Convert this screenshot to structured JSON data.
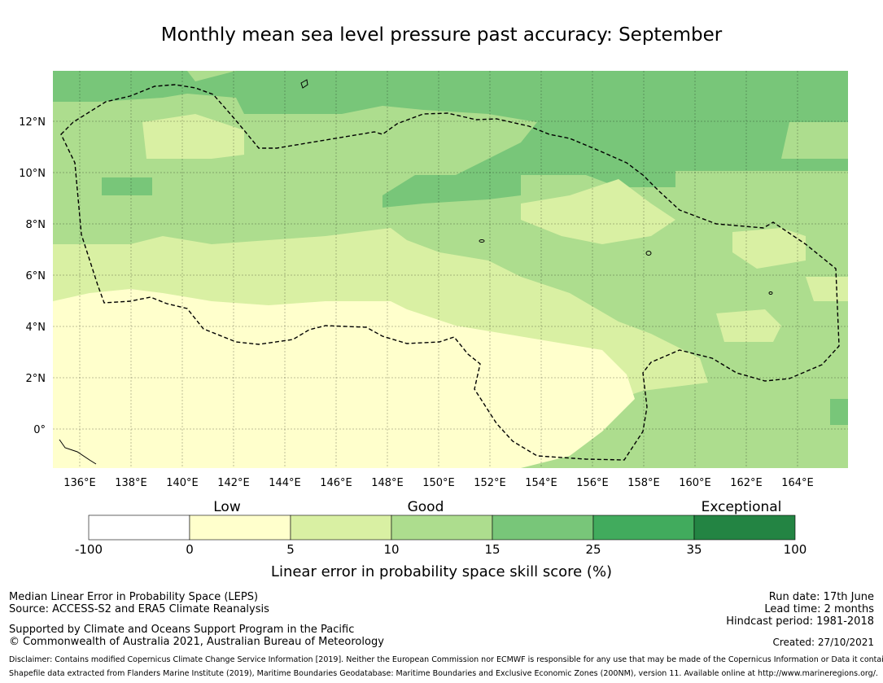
{
  "title": "Monthly mean sea level pressure past accuracy: September",
  "map": {
    "lon_labels": [
      "136°E",
      "138°E",
      "140°E",
      "142°E",
      "144°E",
      "146°E",
      "148°E",
      "150°E",
      "152°E",
      "154°E",
      "156°E",
      "158°E",
      "160°E",
      "162°E",
      "164°E"
    ],
    "lat_labels": [
      "12°N",
      "10°N",
      "8°N",
      "6°N",
      "4°N",
      "2°N",
      "0°"
    ],
    "lon_range": [
      134.9,
      166.0
    ],
    "lat_range": [
      -1.5,
      14.0
    ],
    "grid": true,
    "boundary_style": "dashed"
  },
  "colorbar": {
    "categories": [
      "Low",
      "Good",
      "Exceptional"
    ],
    "ticks": [
      "-100",
      "0",
      "5",
      "10",
      "15",
      "25",
      "35",
      "100"
    ],
    "colors": [
      "#ffffff",
      "#ffffcc",
      "#d9f0a3",
      "#addd8e",
      "#78c679",
      "#41ab5d",
      "#238443"
    ],
    "label": "Linear error in probability space skill score (%)"
  },
  "footer": {
    "left_line1": "Median Linear Error in Probability Space (LEPS)",
    "left_line2": "Source: ACCESS-S2 and ERA5 Climate Reanalysis",
    "left_line3": "Supported by Climate and Oceans Support Program in the Pacific",
    "left_line4": "© Commonwealth of Australia 2021, Australian Bureau of Meteorology",
    "run_date": "Run date: 17th June",
    "lead_time": "Lead time: 2 months",
    "hindcast": "Hindcast period: 1981-2018",
    "created": "Created: 27/10/2021",
    "disclaimer1": "Disclaimer: Contains modified Copernicus Climate Change Service Information [2019]. Neither the European Commission nor ECMWF is responsible for any use that may be made of the Copernicus Information or Data it contains.",
    "disclaimer2": "Shapefile data extracted from Flanders Marine Institute (2019), Maritime Boundaries Geodatabase: Maritime Boundaries and Exclusive Economic Zones (200NM), version 11. Available online at http://www.marineregions.org/."
  }
}
